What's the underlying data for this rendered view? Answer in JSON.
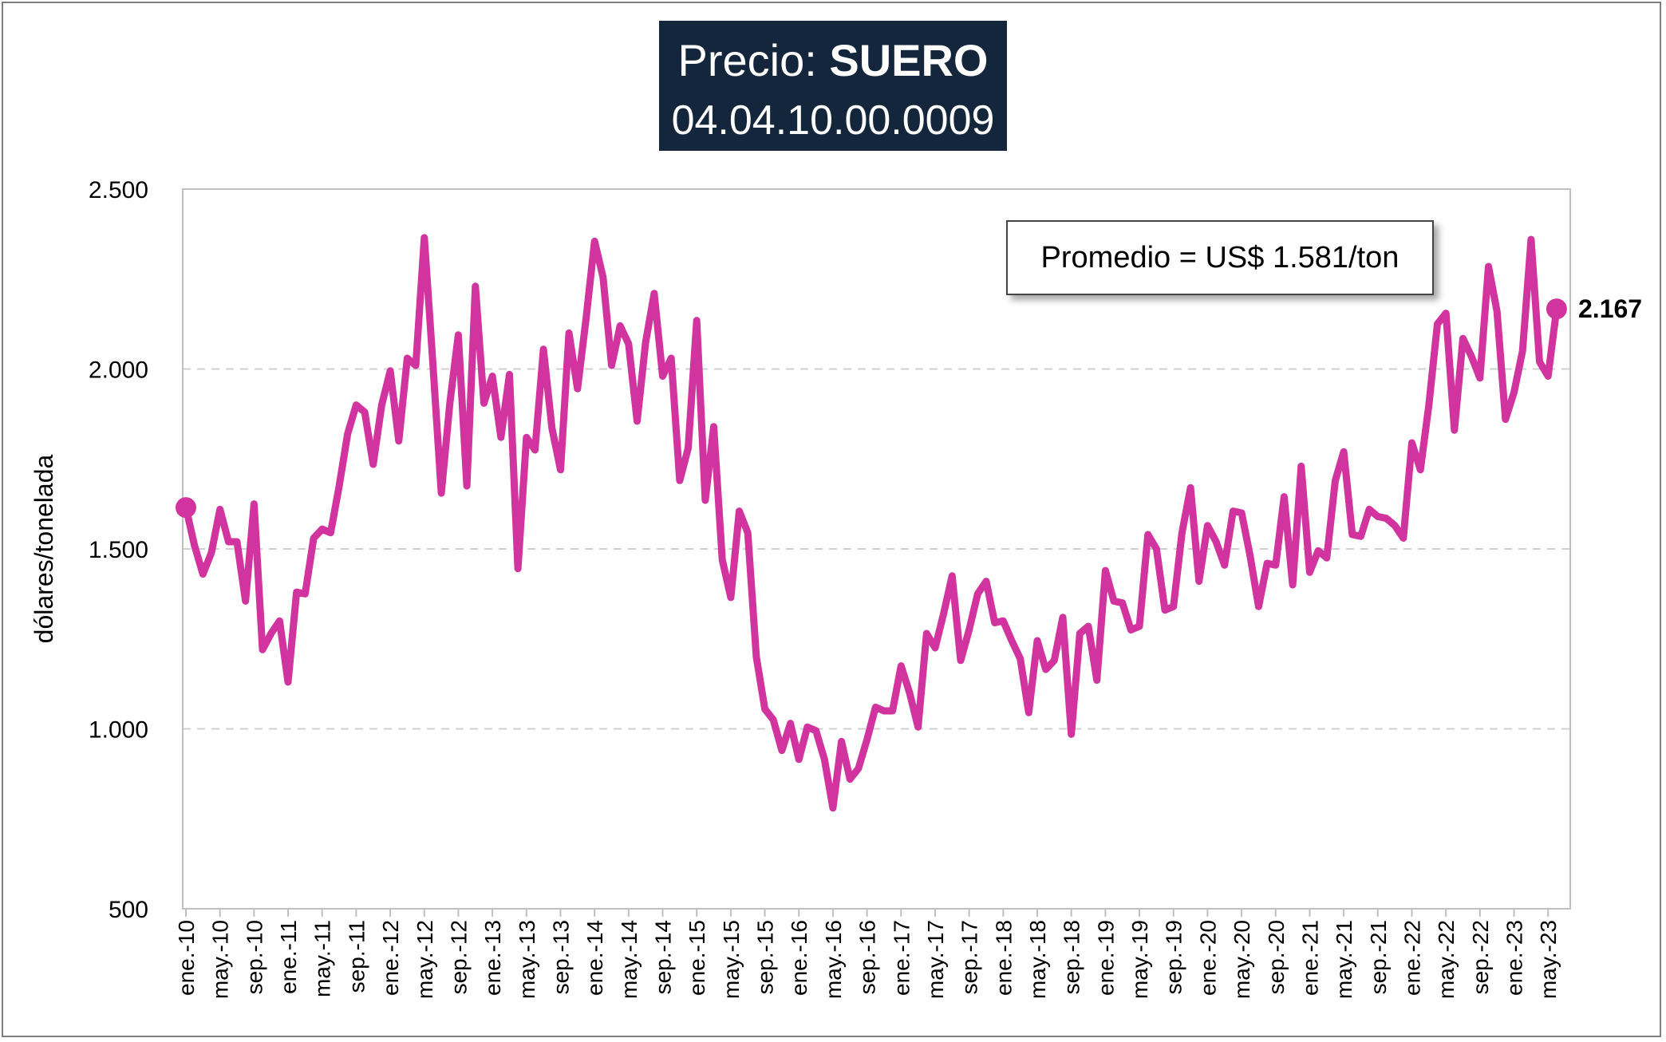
{
  "title": {
    "prefix": "Precio: ",
    "bold": "SUERO",
    "subtitle": "04.04.10.00.0009"
  },
  "annotation": {
    "average_text": "Promedio = US$ 1.581/ton",
    "last_value_label": "2.167"
  },
  "colors": {
    "series": "#d1349e",
    "title_bg": "#14263c",
    "grid": "#d0d0d0",
    "axis": "#bfbfbf"
  },
  "chart_data": {
    "type": "line",
    "title": "Precio: SUERO",
    "subtitle": "04.04.10.00.0009",
    "ylabel": "dólares/tonelada",
    "xlabel": "",
    "ylim": [
      500,
      2500
    ],
    "yticks": [
      500,
      1000,
      1500,
      2000,
      2500
    ],
    "ytick_labels": [
      "500",
      "1.000",
      "1.500",
      "2.000",
      "2.500"
    ],
    "grid": "horizontal dashed",
    "legend": "none",
    "x_tick_labels": [
      "ene.-10",
      "may.-10",
      "sep.-10",
      "ene.-11",
      "may.-11",
      "sep.-11",
      "ene.-12",
      "may.-12",
      "sep.-12",
      "ene.-13",
      "may.-13",
      "sep.-13",
      "ene.-14",
      "may.-14",
      "sep.-14",
      "ene.-15",
      "may.-15",
      "sep.-15",
      "ene.-16",
      "may.-16",
      "sep.-16",
      "ene.-17",
      "may.-17",
      "sep.-17",
      "ene.-18",
      "may.-18",
      "sep.-18",
      "ene.-19",
      "may.-19",
      "sep.-19",
      "ene.-20",
      "may.-20",
      "sep.-20",
      "ene.-21",
      "may.-21",
      "sep.-21",
      "ene.-22",
      "may.-22",
      "sep.-22",
      "ene.-23",
      "may.-23"
    ],
    "series": [
      {
        "start": "ene.-10",
        "frequency": "monthly",
        "values": [
          1615,
          1510,
          1430,
          1490,
          1610,
          1520,
          1520,
          1355,
          1625,
          1220,
          1265,
          1300,
          1130,
          1380,
          1375,
          1530,
          1555,
          1545,
          1675,
          1820,
          1900,
          1880,
          1735,
          1900,
          1995,
          1800,
          2030,
          2010,
          2365,
          2020,
          1655,
          1905,
          2095,
          1675,
          2230,
          1905,
          1980,
          1810,
          1985,
          1445,
          1810,
          1775,
          2055,
          1835,
          1720,
          2100,
          1945,
          2140,
          2355,
          2255,
          2010,
          2120,
          2070,
          1855,
          2075,
          2210,
          1980,
          2030,
          1690,
          1780,
          2135,
          1635,
          1840,
          1470,
          1365,
          1605,
          1545,
          1200,
          1055,
          1025,
          940,
          1015,
          915,
          1005,
          995,
          915,
          780,
          965,
          860,
          890,
          970,
          1060,
          1050,
          1050,
          1175,
          1100,
          1005,
          1265,
          1225,
          1320,
          1425,
          1190,
          1275,
          1375,
          1410,
          1295,
          1300,
          1245,
          1195,
          1045,
          1245,
          1165,
          1190,
          1310,
          985,
          1265,
          1285,
          1135,
          1440,
          1355,
          1350,
          1275,
          1285,
          1540,
          1500,
          1330,
          1340,
          1545,
          1670,
          1410,
          1565,
          1520,
          1455,
          1605,
          1600,
          1480,
          1340,
          1460,
          1455,
          1645,
          1400,
          1730,
          1435,
          1495,
          1475,
          1690,
          1770,
          1540,
          1535,
          1610,
          1590,
          1585,
          1565,
          1530,
          1795,
          1720,
          1900,
          2125,
          2155,
          1830,
          2085,
          2035,
          1975,
          2285,
          2160,
          1860,
          1935,
          2050,
          2360,
          2020,
          1980,
          2167
        ]
      }
    ]
  }
}
